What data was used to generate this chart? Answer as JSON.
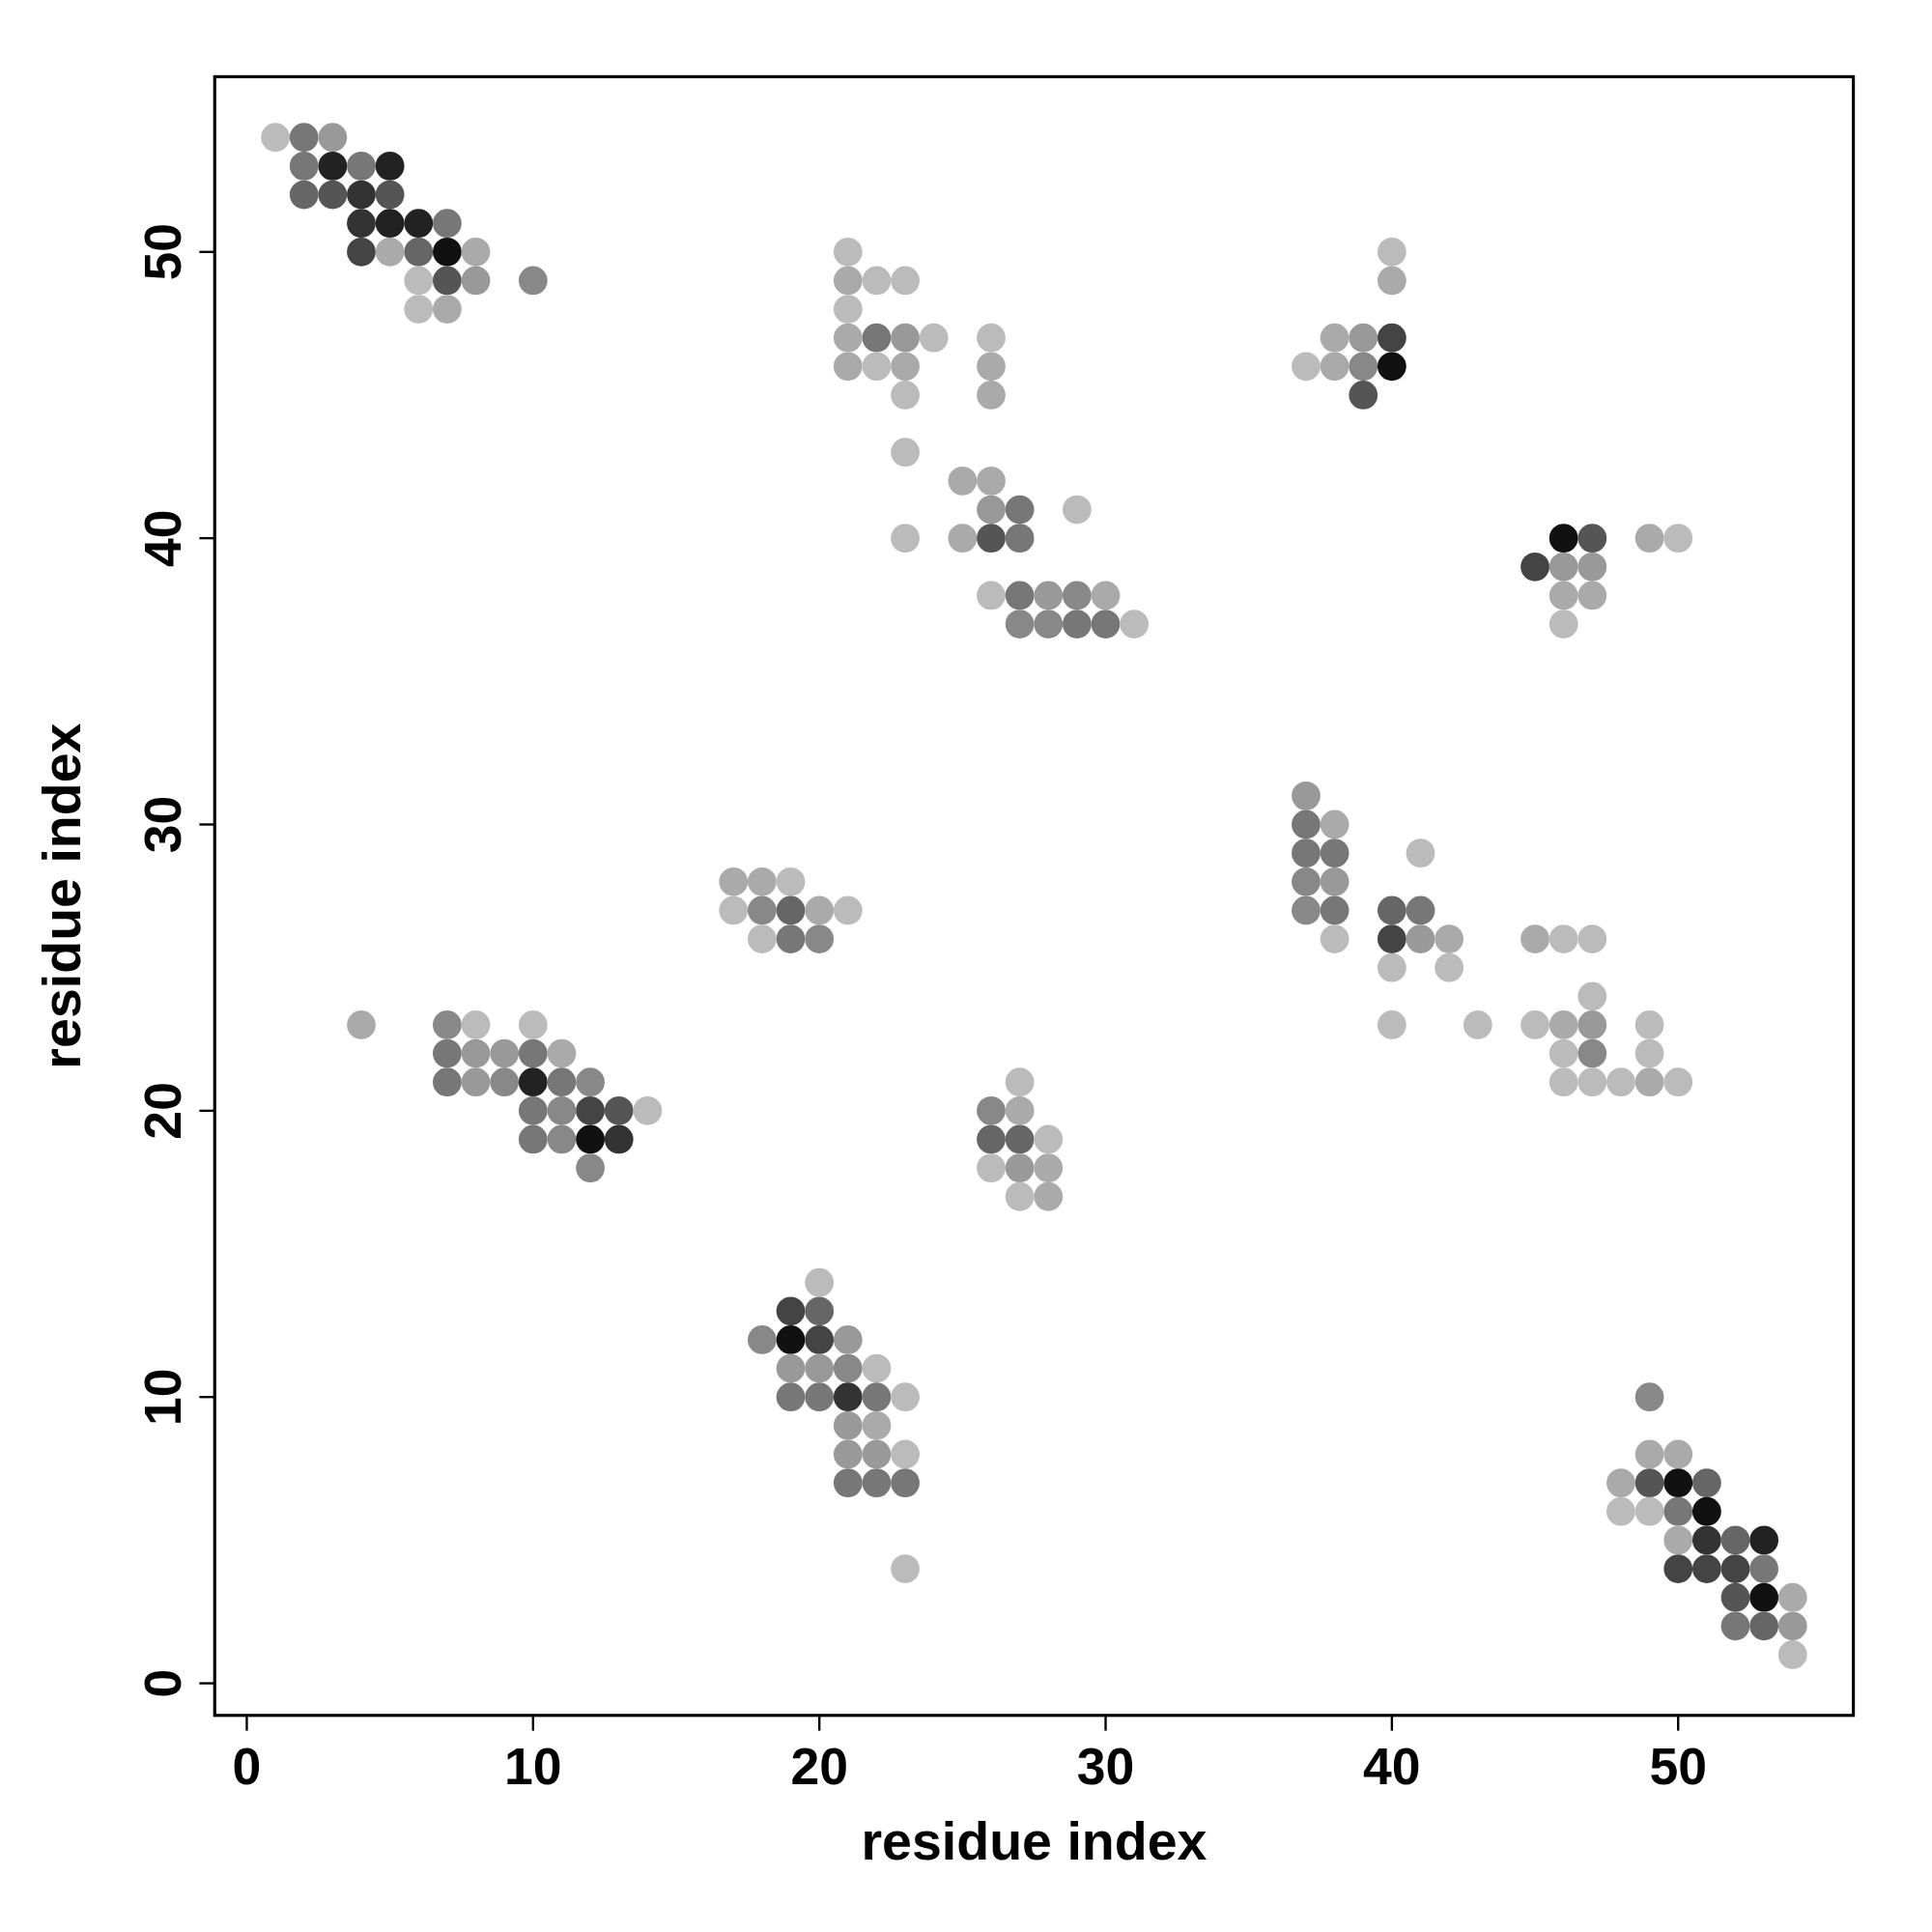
{
  "chart_data": {
    "type": "scatter",
    "xlabel": "residue index",
    "ylabel": "residue index",
    "xlim": [
      -1.12,
      56.12
    ],
    "ylim": [
      -1.12,
      56.12
    ],
    "xticks": [
      0,
      10,
      20,
      30,
      40,
      50
    ],
    "yticks": [
      0,
      10,
      20,
      30,
      40,
      50
    ],
    "marker": "circle",
    "grid": false,
    "series": [
      {
        "x": [
          1,
          2,
          3,
          2,
          3,
          4,
          5,
          2,
          3,
          4,
          5,
          4,
          5,
          6,
          7,
          4,
          5,
          6,
          7,
          8,
          6,
          7,
          8,
          10,
          6,
          7
        ],
        "values": [
          54,
          54,
          54,
          53,
          53,
          53,
          53,
          52,
          52,
          52,
          52,
          51,
          51,
          51,
          51,
          50,
          50,
          50,
          50,
          50,
          49,
          49,
          49,
          49,
          48,
          48
        ],
        "colors": [
          "#bbbbbb",
          "#777777",
          "#999999",
          "#777777",
          "#222222",
          "#777777",
          "#222222",
          "#666666",
          "#555555",
          "#333333",
          "#555555",
          "#333333",
          "#222222",
          "#222222",
          "#777777",
          "#444444",
          "#aaaaaa",
          "#666666",
          "#111111",
          "#aaaaaa",
          "#bbbbbb",
          "#555555",
          "#999999",
          "#888888",
          "#bbbbbb",
          "#aaaaaa"
        ]
      },
      {
        "x": [
          21,
          21,
          22,
          23,
          21,
          21,
          22,
          23,
          24,
          26,
          21,
          22,
          23,
          26,
          23,
          26,
          23,
          25,
          26,
          26,
          27,
          29,
          23,
          25,
          26,
          27,
          26,
          27,
          28,
          29,
          30,
          27,
          28,
          29,
          30,
          31
        ],
        "values": [
          50,
          49,
          49,
          49,
          48,
          47,
          47,
          47,
          47,
          47,
          46,
          46,
          46,
          46,
          45,
          45,
          43,
          42,
          42,
          41,
          41,
          41,
          40,
          40,
          40,
          40,
          38,
          38,
          38,
          38,
          38,
          37,
          37,
          37,
          37,
          37
        ],
        "colors": [
          "#bbbbbb",
          "#aaaaaa",
          "#bbbbbb",
          "#bbbbbb",
          "#bbbbbb",
          "#aaaaaa",
          "#777777",
          "#999999",
          "#bbbbbb",
          "#bbbbbb",
          "#aaaaaa",
          "#bbbbbb",
          "#aaaaaa",
          "#aaaaaa",
          "#bbbbbb",
          "#aaaaaa",
          "#bbbbbb",
          "#aaaaaa",
          "#aaaaaa",
          "#999999",
          "#777777",
          "#bbbbbb",
          "#bbbbbb",
          "#aaaaaa",
          "#555555",
          "#777777",
          "#bbbbbb",
          "#777777",
          "#999999",
          "#888888",
          "#aaaaaa",
          "#888888",
          "#888888",
          "#777777",
          "#777777",
          "#bbbbbb"
        ]
      },
      {
        "x": [
          40,
          40,
          38,
          39,
          40,
          37,
          38,
          39,
          40,
          39
        ],
        "values": [
          50,
          49,
          47,
          47,
          47,
          46,
          46,
          46,
          46,
          45
        ],
        "colors": [
          "#bbbbbb",
          "#aaaaaa",
          "#aaaaaa",
          "#999999",
          "#444444",
          "#bbbbbb",
          "#aaaaaa",
          "#888888",
          "#111111",
          "#555555"
        ]
      },
      {
        "x": [
          46,
          47,
          49,
          50,
          45,
          46,
          47,
          46,
          47,
          46
        ],
        "values": [
          40,
          40,
          40,
          40,
          39,
          39,
          39,
          38,
          38,
          37
        ],
        "colors": [
          "#111111",
          "#555555",
          "#aaaaaa",
          "#bbbbbb",
          "#444444",
          "#999999",
          "#999999",
          "#aaaaaa",
          "#aaaaaa",
          "#bbbbbb"
        ]
      },
      {
        "x": [
          37,
          37,
          38,
          37,
          38,
          41,
          37,
          38,
          37,
          38,
          40,
          41,
          38,
          40,
          41,
          42,
          40,
          42,
          40,
          43
        ],
        "values": [
          31,
          30,
          30,
          29,
          29,
          29,
          28,
          28,
          27,
          27,
          27,
          27,
          26,
          26,
          26,
          26,
          25,
          25,
          23,
          23
        ],
        "colors": [
          "#999999",
          "#777777",
          "#aaaaaa",
          "#777777",
          "#777777",
          "#bbbbbb",
          "#888888",
          "#999999",
          "#888888",
          "#777777",
          "#666666",
          "#777777",
          "#bbbbbb",
          "#444444",
          "#999999",
          "#aaaaaa",
          "#bbbbbb",
          "#bbbbbb",
          "#bbbbbb",
          "#bbbbbb"
        ]
      },
      {
        "x": [
          45,
          46,
          47,
          47,
          45,
          46,
          47,
          49,
          46,
          47,
          49,
          46,
          47,
          48,
          49,
          50
        ],
        "values": [
          26,
          26,
          26,
          24,
          23,
          23,
          23,
          23,
          22,
          22,
          22,
          21,
          21,
          21,
          21,
          21
        ],
        "colors": [
          "#aaaaaa",
          "#bbbbbb",
          "#bbbbbb",
          "#bbbbbb",
          "#bbbbbb",
          "#aaaaaa",
          "#999999",
          "#bbbbbb",
          "#bbbbbb",
          "#888888",
          "#bbbbbb",
          "#bbbbbb",
          "#bbbbbb",
          "#bbbbbb",
          "#aaaaaa",
          "#bbbbbb"
        ]
      },
      {
        "x": [
          17,
          18,
          19,
          17,
          18,
          19,
          20,
          21,
          18,
          19,
          20
        ],
        "values": [
          28,
          28,
          28,
          27,
          27,
          27,
          27,
          27,
          26,
          26,
          26
        ],
        "colors": [
          "#aaaaaa",
          "#aaaaaa",
          "#bbbbbb",
          "#bbbbbb",
          "#888888",
          "#666666",
          "#aaaaaa",
          "#bbbbbb",
          "#bbbbbb",
          "#777777",
          "#888888"
        ]
      },
      {
        "x": [
          4,
          7,
          8,
          10,
          7,
          8,
          9,
          10,
          11,
          7,
          8,
          9,
          10,
          11,
          12,
          10,
          11,
          12,
          13,
          14,
          10,
          11,
          12,
          13,
          12
        ],
        "values": [
          23,
          23,
          23,
          23,
          22,
          22,
          22,
          22,
          22,
          21,
          21,
          21,
          21,
          21,
          21,
          20,
          20,
          20,
          20,
          20,
          19,
          19,
          19,
          19,
          18
        ],
        "colors": [
          "#aaaaaa",
          "#888888",
          "#bbbbbb",
          "#bbbbbb",
          "#777777",
          "#999999",
          "#999999",
          "#777777",
          "#aaaaaa",
          "#777777",
          "#999999",
          "#888888",
          "#222222",
          "#777777",
          "#888888",
          "#777777",
          "#888888",
          "#444444",
          "#555555",
          "#bbbbbb",
          "#777777",
          "#888888",
          "#111111",
          "#333333",
          "#888888"
        ]
      },
      {
        "x": [
          27,
          26,
          27,
          26,
          27,
          28,
          26,
          27,
          28,
          27,
          28
        ],
        "values": [
          21,
          20,
          20,
          19,
          19,
          19,
          18,
          18,
          18,
          17,
          17
        ],
        "colors": [
          "#bbbbbb",
          "#888888",
          "#aaaaaa",
          "#666666",
          "#666666",
          "#bbbbbb",
          "#bbbbbb",
          "#999999",
          "#aaaaaa",
          "#bbbbbb",
          "#aaaaaa"
        ]
      },
      {
        "x": [
          20,
          19,
          20,
          18,
          19,
          20,
          21,
          19,
          20,
          21,
          22,
          19,
          20,
          21,
          22,
          23,
          21,
          22,
          21,
          22,
          23,
          21,
          22,
          23,
          23
        ],
        "values": [
          14,
          13,
          13,
          12,
          12,
          12,
          12,
          11,
          11,
          11,
          11,
          10,
          10,
          10,
          10,
          10,
          9,
          9,
          8,
          8,
          8,
          7,
          7,
          7,
          4
        ],
        "colors": [
          "#bbbbbb",
          "#444444",
          "#666666",
          "#888888",
          "#111111",
          "#444444",
          "#999999",
          "#999999",
          "#999999",
          "#888888",
          "#bbbbbb",
          "#777777",
          "#777777",
          "#333333",
          "#777777",
          "#bbbbbb",
          "#999999",
          "#aaaaaa",
          "#999999",
          "#999999",
          "#bbbbbb",
          "#777777",
          "#777777",
          "#777777",
          "#bbbbbb"
        ]
      },
      {
        "x": [
          49,
          49,
          50,
          48,
          49,
          50,
          51,
          48,
          49,
          50,
          51,
          50,
          51,
          52,
          53,
          50,
          51,
          52,
          53,
          52,
          53,
          54,
          52,
          53,
          54,
          54
        ],
        "values": [
          10,
          8,
          8,
          7,
          7,
          7,
          7,
          6,
          6,
          6,
          6,
          5,
          5,
          5,
          5,
          4,
          4,
          4,
          4,
          3,
          3,
          3,
          2,
          2,
          2,
          1
        ],
        "colors": [
          "#888888",
          "#aaaaaa",
          "#aaaaaa",
          "#aaaaaa",
          "#555555",
          "#111111",
          "#666666",
          "#bbbbbb",
          "#bbbbbb",
          "#777777",
          "#111111",
          "#aaaaaa",
          "#333333",
          "#666666",
          "#222222",
          "#444444",
          "#444444",
          "#444444",
          "#777777",
          "#555555",
          "#111111",
          "#aaaaaa",
          "#777777",
          "#666666",
          "#999999",
          "#bbbbbb"
        ]
      }
    ]
  }
}
